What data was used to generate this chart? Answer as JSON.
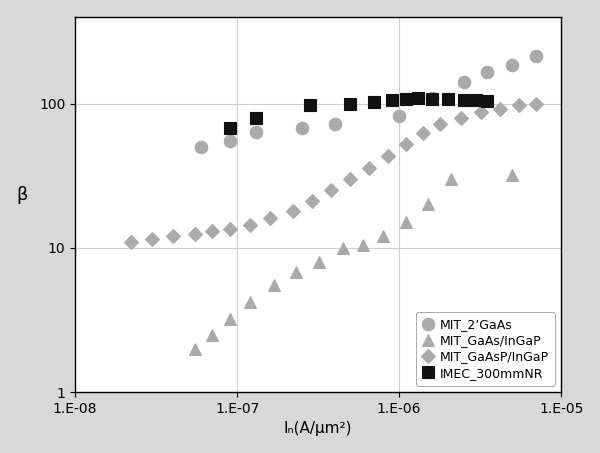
{
  "title": "",
  "xlabel": "Iₙ(A/μm²)",
  "ylabel": "β",
  "series": {
    "MIT_2GaAs": {
      "label": "MIT_2’GaAs",
      "marker": "o",
      "color": "#aaaaaa",
      "markersize": 9,
      "linestyle": "none",
      "x": [
        6e-08,
        9e-08,
        1.3e-07,
        2.5e-07,
        4e-07,
        1e-06,
        1.6e-06,
        2.5e-06,
        3.5e-06,
        5e-06,
        7e-06
      ],
      "y": [
        50,
        55,
        63,
        68,
        72,
        82,
        110,
        140,
        165,
        185,
        215
      ]
    },
    "MIT_GaAs_InGaP": {
      "label": "MIT_GaAs/InGaP",
      "marker": "^",
      "color": "#aaaaaa",
      "markersize": 8,
      "linestyle": "none",
      "x": [
        5.5e-08,
        7e-08,
        9e-08,
        1.2e-07,
        1.7e-07,
        2.3e-07,
        3.2e-07,
        4.5e-07,
        6e-07,
        8e-07,
        1.1e-06,
        1.5e-06,
        2.1e-06,
        5e-06
      ],
      "y": [
        2.0,
        2.5,
        3.2,
        4.2,
        5.5,
        6.8,
        8.0,
        10.0,
        10.5,
        12,
        15,
        20,
        30,
        32
      ]
    },
    "MIT_GaAsP_InGaP": {
      "label": "MIT_GaAsP/InGaP",
      "marker": "D",
      "color": "#aaaaaa",
      "markersize": 7,
      "linestyle": "none",
      "x": [
        2.2e-08,
        3e-08,
        4e-08,
        5.5e-08,
        7e-08,
        9e-08,
        1.2e-07,
        1.6e-07,
        2.2e-07,
        2.9e-07,
        3.8e-07,
        5e-07,
        6.5e-07,
        8.5e-07,
        1.1e-06,
        1.4e-06,
        1.8e-06,
        2.4e-06,
        3.2e-06,
        4.2e-06,
        5.5e-06,
        7e-06
      ],
      "y": [
        11,
        11.5,
        12,
        12.5,
        13,
        13.5,
        14.5,
        16,
        18,
        21,
        25,
        30,
        36,
        43,
        52,
        62,
        72,
        80,
        87,
        92,
        97,
        100
      ]
    },
    "IMEC_300mmNR": {
      "label": "IMEC_300mmNR",
      "marker": "s",
      "color": "#111111",
      "markersize": 9,
      "linestyle": "none",
      "x": [
        9e-08,
        1.3e-07,
        2.8e-07,
        5e-07,
        7e-07,
        9e-07,
        1.1e-06,
        1.3e-06,
        1.6e-06,
        2e-06,
        2.5e-06,
        3e-06,
        3.5e-06
      ],
      "y": [
        68,
        80,
        97,
        100,
        103,
        105,
        107,
        110,
        108,
        107,
        106,
        105,
        104
      ]
    }
  },
  "background_color": "#d8d8d8",
  "plot_bg_color": "#ffffff",
  "border_color": "#000000",
  "grid_color": "#d0d0d0",
  "tick_label_fontsize": 10,
  "axis_label_fontsize": 11
}
